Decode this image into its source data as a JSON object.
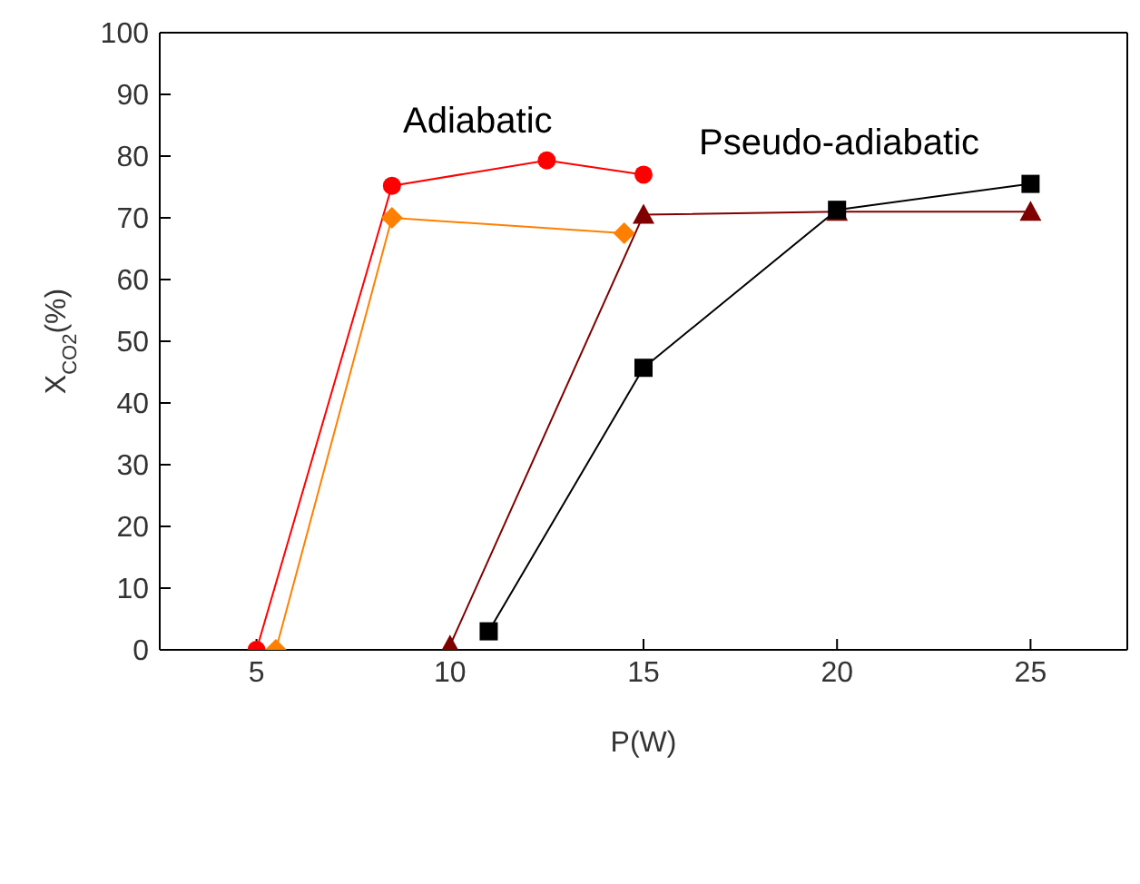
{
  "chart_data": {
    "type": "line",
    "xlabel": "P(W)",
    "ylabel": "X$_{CO2}$(%)",
    "xlim": [
      2.5,
      27.5
    ],
    "xticks": [
      5,
      10,
      15,
      20,
      25
    ],
    "ylim": [
      0,
      100
    ],
    "yticks": [
      0,
      10,
      20,
      30,
      40,
      50,
      60,
      70,
      80,
      90,
      100
    ],
    "annotations": [
      "Adiabatic",
      "Pseudo-adiabatic"
    ],
    "series": [
      {
        "color": "#ff0000",
        "marker": "circle",
        "x": [
          5,
          8.5,
          12.5,
          15
        ],
        "values": [
          0,
          75.2,
          79.3,
          77
        ]
      },
      {
        "color": "#ff8000",
        "marker": "diamond",
        "x": [
          5.5,
          8.5,
          14.5
        ],
        "values": [
          0,
          70,
          67.5
        ]
      },
      {
        "color": "#800000",
        "marker": "triangle",
        "x": [
          10,
          15,
          20,
          25
        ],
        "values": [
          0.7,
          70.5,
          71,
          71
        ]
      },
      {
        "color": "#000000",
        "marker": "square",
        "x": [
          11,
          15,
          20,
          25
        ],
        "values": [
          3,
          45.7,
          71.3,
          75.5
        ]
      }
    ]
  }
}
